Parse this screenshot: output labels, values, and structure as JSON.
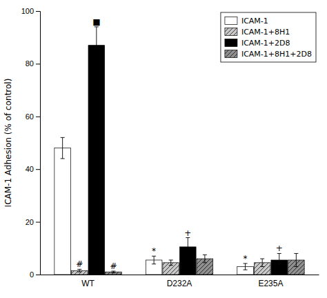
{
  "chart_data": {
    "type": "bar",
    "categories": [
      "WT",
      "D232A",
      "E235A"
    ],
    "series": [
      {
        "name": "ICAM-1",
        "color": "white",
        "values": [
          48.0,
          5.5,
          3.0
        ],
        "errors": [
          4.0,
          1.5,
          1.2
        ],
        "annotations": [
          null,
          "*",
          "*"
        ]
      },
      {
        "name": "ICAM-1+8H1",
        "color": "#c8c8c8",
        "values": [
          1.5,
          4.5,
          4.5
        ],
        "errors": [
          0.5,
          1.0,
          1.5
        ],
        "annotations": [
          "#",
          null,
          null
        ]
      },
      {
        "name": "ICAM-1+2D8",
        "color": "black",
        "values": [
          87.0,
          10.5,
          5.5
        ],
        "errors": [
          7.0,
          3.5,
          2.5
        ],
        "annotations": [
          "■",
          "+",
          "+"
        ]
      },
      {
        "name": "ICAM-1+8H1+2D8",
        "color": "#909090",
        "values": [
          1.0,
          6.0,
          5.5
        ],
        "errors": [
          0.3,
          1.5,
          2.5
        ],
        "annotations": [
          "#",
          null,
          null
        ]
      }
    ],
    "ylabel": "ICAM-1 Adhesion (% of control)",
    "ylim": [
      0,
      100
    ],
    "yticks": [
      0,
      20,
      40,
      60,
      80,
      100
    ],
    "grid": false,
    "legend": "upper right"
  }
}
